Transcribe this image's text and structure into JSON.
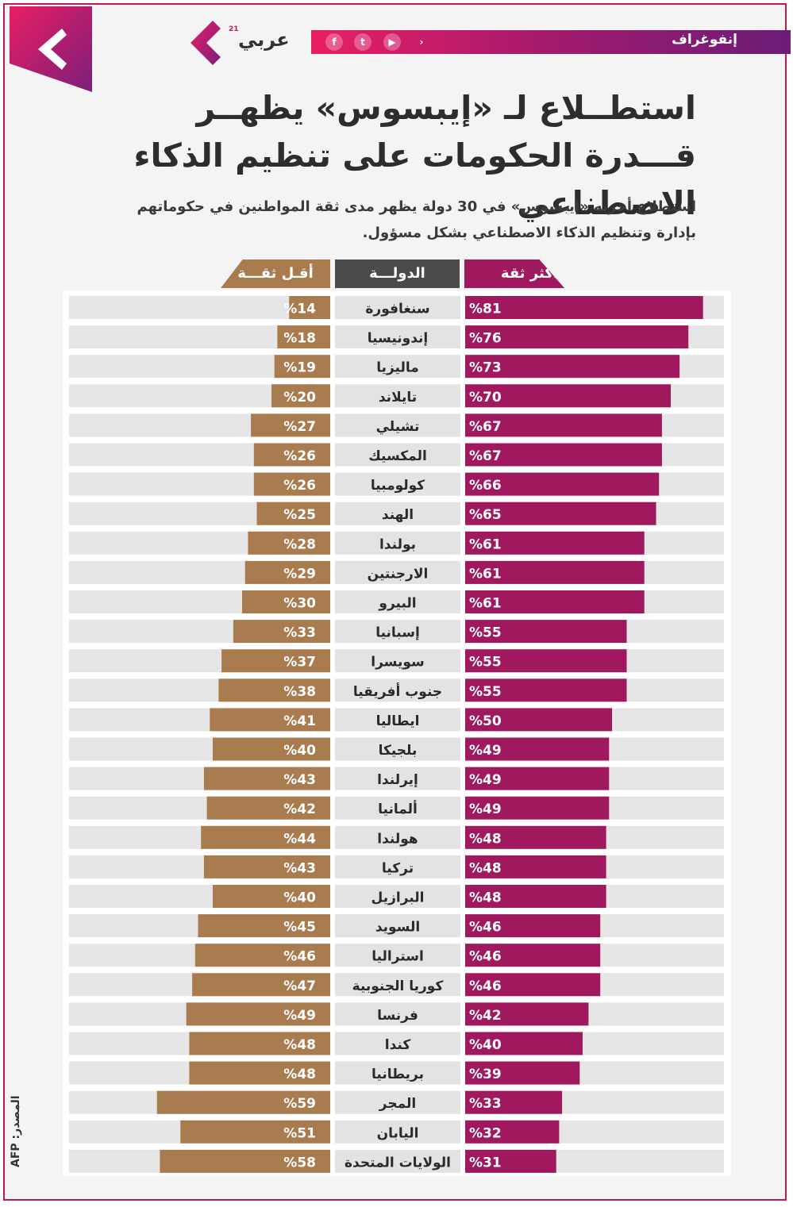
{
  "header": {
    "section_label": "إنفوغراف",
    "brand_name": "عربي",
    "brand_superscript": "21",
    "social_icons": [
      "facebook-icon",
      "twitter-icon",
      "youtube-icon",
      "brand-arrow-icon"
    ]
  },
  "title": "استطــلاع لـ «إيبسوس» يظهــر قـــدرة الحكومات على تنظيم الذكاء الاصطناعي",
  "subtitle": "استطلاع أجرته «إيبسوس» في 30 دولة يظهر مدى ثقة المواطنين في حكوماتهم بإدارة وتنظيم الذكاء الاصطناعي بشكل مسؤول.",
  "source": "المصدر: AFP",
  "colors": {
    "high_trust": "#a0195f",
    "low_trust": "#a97c50",
    "country_bg": "#e3e3e3",
    "track": "#e6e6e6",
    "accent": "#c2185b"
  },
  "chart_data": {
    "type": "bar",
    "orientation": "horizontal-diverging",
    "title": "استطــلاع لـ «إيبسوس» يظهــر قـــدرة الحكومات على تنظيم الذكاء الاصطناعي",
    "value_suffix": "%",
    "column_headers": {
      "high": "أكثر ثقة",
      "country": "الدولـــة",
      "low": "أقـل ثقـــة"
    },
    "categories": [
      "سنغافورة",
      "إندونيسيا",
      "ماليزيا",
      "تايلاند",
      "تشيلي",
      "المكسيك",
      "كولومبيا",
      "الهند",
      "بولندا",
      "الارجنتين",
      "البيرو",
      "إسبانيا",
      "سويسرا",
      "جنوب أفريقيا",
      "ايطاليا",
      "بلجيكا",
      "إيرلندا",
      "ألمانيا",
      "هولندا",
      "تركيا",
      "البرازيل",
      "السويد",
      "استراليا",
      "كوريا الجنوبية",
      "فرنسا",
      "كندا",
      "بريطانيا",
      "المجر",
      "اليابان",
      "الولايات المتحدة"
    ],
    "series": [
      {
        "name": "أكثر ثقة",
        "values": [
          81,
          76,
          73,
          70,
          67,
          67,
          66,
          65,
          61,
          61,
          61,
          55,
          55,
          55,
          50,
          49,
          49,
          49,
          48,
          48,
          48,
          46,
          46,
          46,
          42,
          40,
          39,
          33,
          32,
          31
        ]
      },
      {
        "name": "أقـل ثقـــة",
        "values": [
          14,
          18,
          19,
          20,
          27,
          26,
          26,
          25,
          28,
          29,
          30,
          33,
          37,
          38,
          41,
          40,
          43,
          42,
          44,
          43,
          40,
          45,
          46,
          47,
          49,
          48,
          48,
          59,
          51,
          58
        ]
      }
    ],
    "xlim": [
      0,
      100
    ]
  }
}
